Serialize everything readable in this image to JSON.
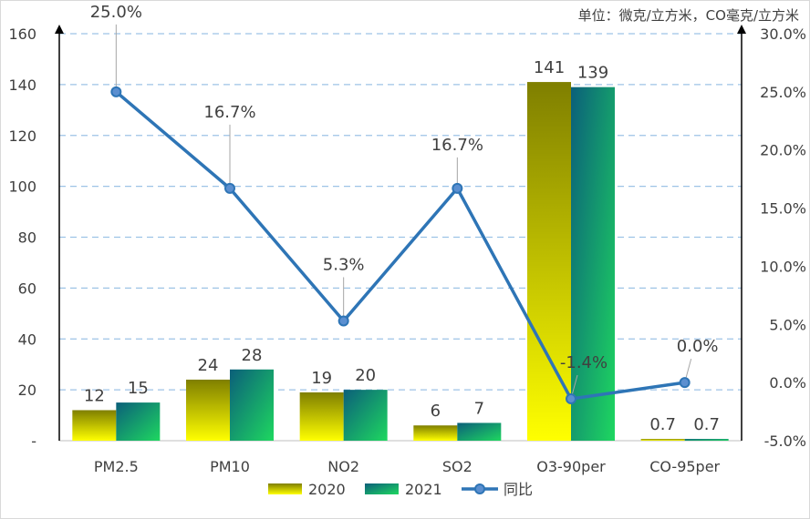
{
  "chart_data": {
    "type": "bar+line",
    "unit_note": "单位：微克/立方米，CO毫克/立方米",
    "categories": [
      "PM2.5",
      "PM10",
      "NO2",
      "SO2",
      "O3-90per",
      "CO-95per"
    ],
    "series": [
      {
        "name": "2020",
        "type": "bar",
        "values": [
          12,
          24,
          19,
          6,
          141,
          0.7
        ],
        "color_top": "#7f7f00",
        "color_bottom": "#ffff00"
      },
      {
        "name": "2021",
        "type": "bar",
        "values": [
          15,
          28,
          20,
          7,
          139,
          0.7
        ],
        "color_top": "#0b5f7a",
        "color_bottom": "#1ed760"
      },
      {
        "name": "同比",
        "type": "line",
        "axis": "right",
        "values": [
          25.0,
          16.7,
          5.3,
          16.7,
          -1.4,
          0.0
        ],
        "labels": [
          "25.0%",
          "16.7%",
          "5.3%",
          "16.7%",
          "-1.4%",
          "0.0%"
        ],
        "color": "#2e75b6"
      }
    ],
    "bar_labels_2020": [
      "12",
      "24",
      "19",
      "6",
      "141",
      "0.7"
    ],
    "bar_labels_2021": [
      "15",
      "28",
      "20",
      "7",
      "139",
      "0.7"
    ],
    "y_left": {
      "min": 0,
      "max": 160,
      "ticks": [
        0,
        20,
        40,
        60,
        80,
        100,
        120,
        140,
        160
      ],
      "tick_labels": [
        "-",
        "20",
        "40",
        "60",
        "80",
        "100",
        "120",
        "140",
        "160"
      ]
    },
    "y_right": {
      "min": -5,
      "max": 30,
      "ticks": [
        -5,
        0,
        5,
        10,
        15,
        20,
        25,
        30
      ],
      "tick_labels": [
        "-5.0%",
        "0.0%",
        "5.0%",
        "10.0%",
        "15.0%",
        "20.0%",
        "25.0%",
        "30.0%"
      ]
    },
    "grid": true,
    "legend": {
      "position": "bottom",
      "entries": [
        "2020",
        "2021",
        "同比"
      ]
    }
  }
}
